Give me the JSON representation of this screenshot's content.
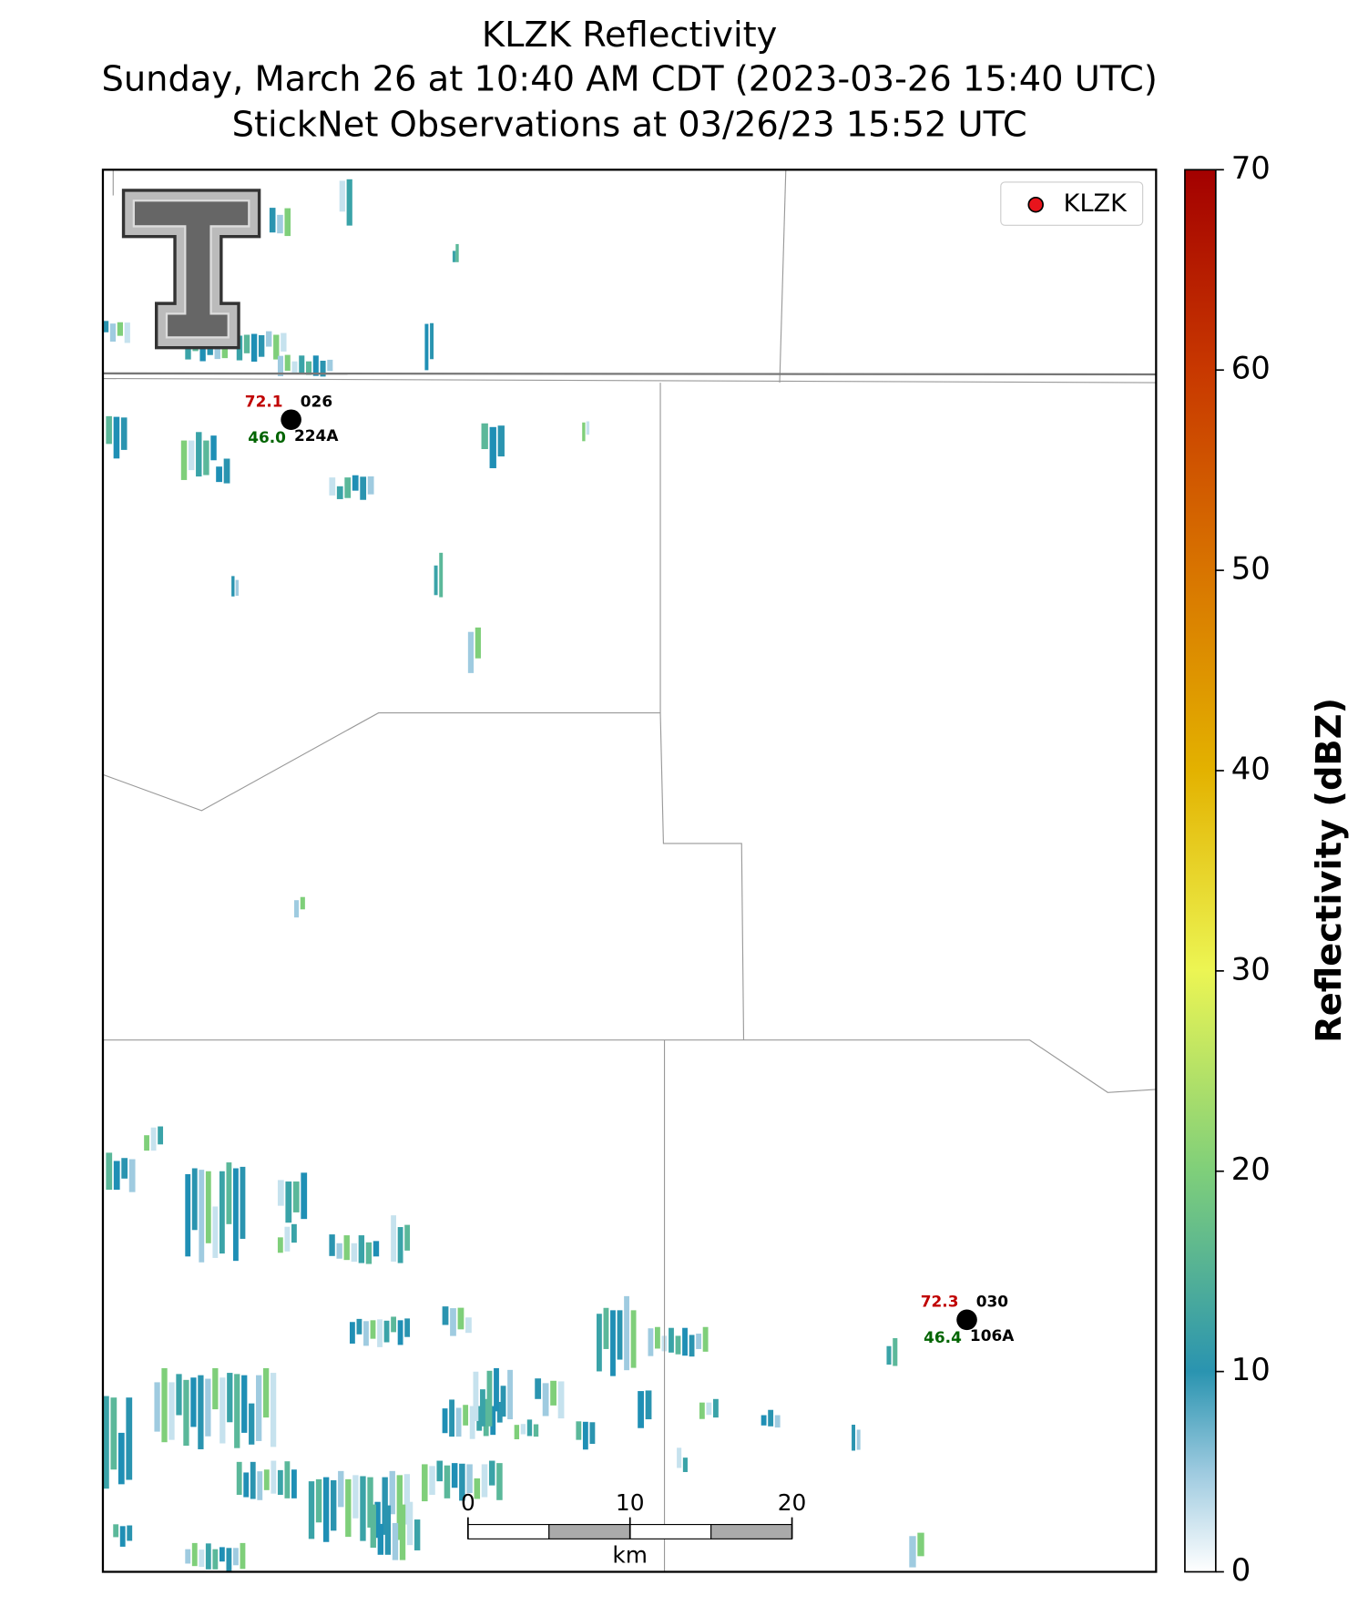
{
  "header": {
    "title_lines": [
      "KLZK Reflectivity",
      "Sunday, March 26 at 10:40 AM CDT (2023-03-26 15:40 UTC)",
      "StickNet Observations at 03/26/23 15:52 UTC"
    ]
  },
  "legend": {
    "entries": [
      {
        "label": "KLZK",
        "color": "#e8141c"
      }
    ],
    "corner": "upper right"
  },
  "colorbar": {
    "label": "Reflectivity (dBZ)",
    "lim": [
      0,
      70
    ],
    "ticks": [
      0,
      10,
      20,
      30,
      40,
      50,
      60,
      70
    ]
  },
  "stations": [
    {
      "temperature": "72.1",
      "dewpoint": "46.0",
      "wind": "026",
      "id": "224A"
    },
    {
      "temperature": "72.3",
      "dewpoint": "46.4",
      "wind": "030",
      "id": "106A"
    }
  ],
  "scalebar": {
    "ticks": [
      0,
      10,
      20
    ],
    "unit": "km"
  }
}
